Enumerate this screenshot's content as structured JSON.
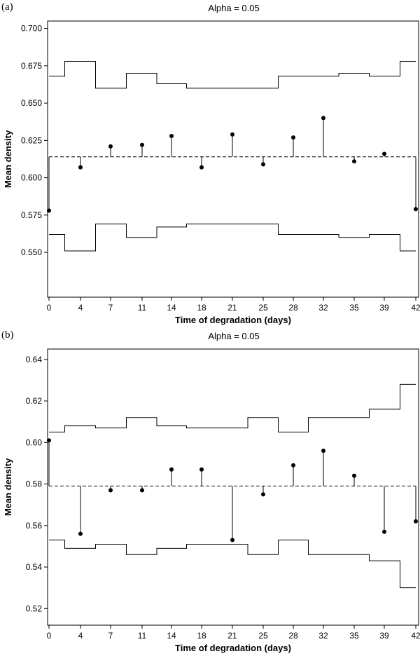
{
  "chart_data": [
    {
      "panel_label": "(a)",
      "type": "line",
      "title": "Alpha = 0.05",
      "xlabel": "Time of degradation (days)",
      "ylabel": "Mean density",
      "x_ticks": [
        "0",
        "4",
        "7",
        "11",
        "14",
        "18",
        "21",
        "25",
        "28",
        "32",
        "35",
        "39",
        "42"
      ],
      "y_ticks": [
        "0.700",
        "0.675",
        "0.650",
        "0.625",
        "0.600",
        "0.575",
        "0.550"
      ],
      "ylim": [
        0.52,
        0.705
      ],
      "center_line": 0.614,
      "points": [
        0.578,
        0.607,
        0.621,
        0.622,
        0.628,
        0.607,
        0.629,
        0.609,
        0.627,
        0.64,
        0.611,
        0.616,
        0.579
      ],
      "upper_limit": [
        0.668,
        0.678,
        0.66,
        0.67,
        0.663,
        0.66,
        0.66,
        0.66,
        0.668,
        0.668,
        0.67,
        0.668,
        0.678
      ],
      "lower_limit": [
        0.562,
        0.551,
        0.569,
        0.56,
        0.567,
        0.569,
        0.569,
        0.569,
        0.562,
        0.562,
        0.56,
        0.562,
        0.551
      ],
      "grid": false
    },
    {
      "panel_label": "(b)",
      "type": "line",
      "title": "Alpha = 0.05",
      "xlabel": "Time of degradation (days)",
      "ylabel": "Mean density",
      "x_ticks": [
        "0",
        "4",
        "7",
        "11",
        "14",
        "18",
        "21",
        "25",
        "28",
        "32",
        "35",
        "39",
        "42"
      ],
      "y_ticks": [
        "0.64",
        "0.62",
        "0.60",
        "0.58",
        "0.56",
        "0.54",
        "0.52"
      ],
      "ylim": [
        0.512,
        0.645
      ],
      "center_line": 0.579,
      "points": [
        0.601,
        0.556,
        0.577,
        0.577,
        0.587,
        0.587,
        0.553,
        0.575,
        0.589,
        0.596,
        0.584,
        0.557,
        0.562
      ],
      "upper_limit": [
        0.605,
        0.608,
        0.607,
        0.612,
        0.608,
        0.607,
        0.607,
        0.612,
        0.605,
        0.612,
        0.612,
        0.616,
        0.628
      ],
      "lower_limit": [
        0.553,
        0.549,
        0.551,
        0.546,
        0.549,
        0.551,
        0.551,
        0.546,
        0.553,
        0.546,
        0.546,
        0.543,
        0.53
      ],
      "grid": false
    }
  ]
}
